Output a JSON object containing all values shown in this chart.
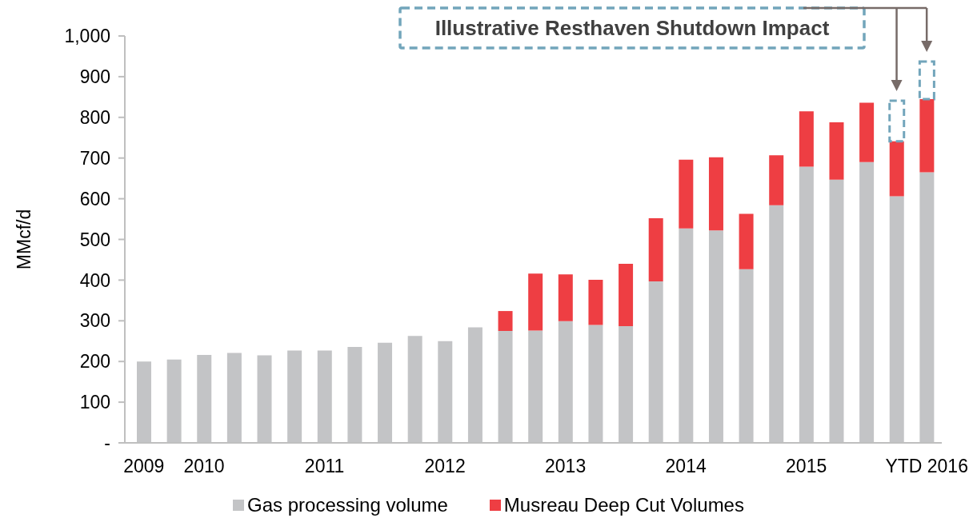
{
  "chart_data": {
    "type": "bar",
    "stacked": true,
    "ylabel": "MMcf/d",
    "categories": [
      "2009",
      null,
      "2010",
      null,
      null,
      null,
      "2011",
      null,
      null,
      null,
      "2012",
      null,
      null,
      null,
      "2013",
      null,
      null,
      null,
      "2014",
      null,
      null,
      null,
      "2015",
      null,
      null,
      null,
      "YTD 2016"
    ],
    "series": [
      {
        "name": "Gas processing volume",
        "color": "#c3c4c6",
        "values": [
          200,
          205,
          216,
          221,
          215,
          227,
          227,
          236,
          246,
          263,
          250,
          284,
          275,
          276,
          299,
          290,
          287,
          397,
          527,
          522,
          427,
          584,
          679,
          647,
          690,
          606,
          665
        ]
      },
      {
        "name": "Musreau Deep Cut Volumes",
        "color": "#ee3e43",
        "values": [
          null,
          null,
          null,
          null,
          null,
          null,
          null,
          null,
          null,
          null,
          null,
          null,
          49,
          140,
          115,
          111,
          153,
          155,
          169,
          180,
          136,
          123,
          136,
          141,
          146,
          135,
          180
        ]
      },
      {
        "color": "#72a5bb",
        "line_style": "dashed",
        "values": [
          null,
          null,
          null,
          null,
          null,
          null,
          null,
          null,
          null,
          null,
          null,
          null,
          null,
          null,
          null,
          null,
          null,
          null,
          null,
          null,
          null,
          null,
          null,
          null,
          null,
          100,
          92
        ]
      }
    ],
    "ylim": [
      0,
      1000
    ],
    "yticks": [
      {
        "value": 0,
        "label": "-"
      },
      100,
      200,
      300,
      400,
      500,
      600,
      700,
      800,
      900,
      {
        "value": 1000,
        "label": "1,000"
      }
    ],
    "legend": "bottom",
    "annotations": [
      "Illustrative Resthaven Shutdown Impact"
    ]
  }
}
